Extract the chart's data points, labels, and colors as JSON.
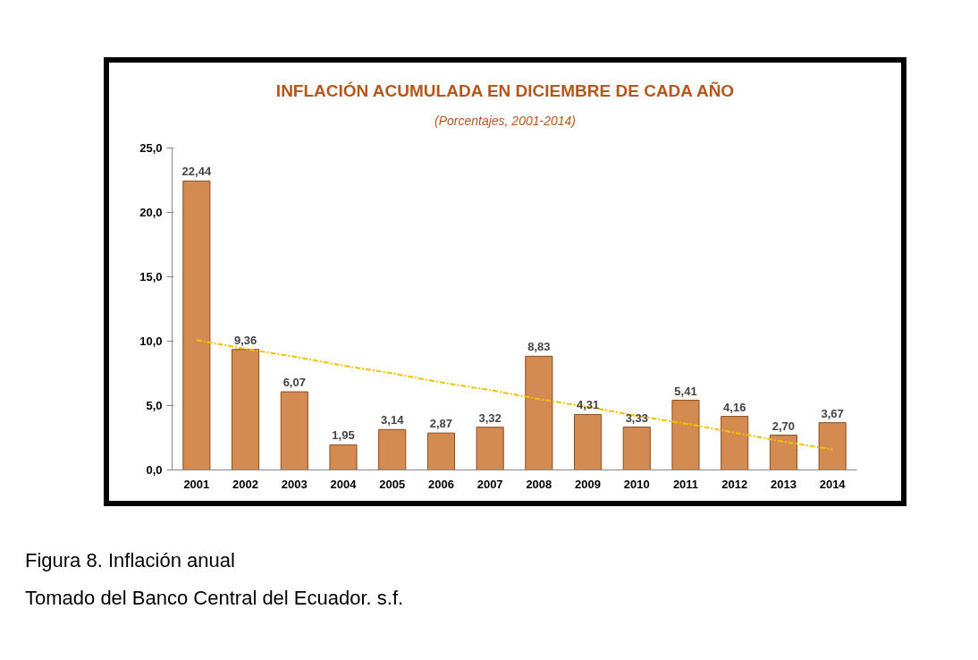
{
  "chart_data": {
    "type": "bar",
    "title": "INFLACIÓN ACUMULADA EN DICIEMBRE DE CADA AÑO",
    "subtitle": "(Porcentajes, 2001-2014)",
    "categories": [
      "2001",
      "2002",
      "2003",
      "2004",
      "2005",
      "2006",
      "2007",
      "2008",
      "2009",
      "2010",
      "2011",
      "2012",
      "2013",
      "2014"
    ],
    "series": [
      {
        "color": "#d38b52",
        "values": [
          22.44,
          9.36,
          6.07,
          1.95,
          3.14,
          2.87,
          3.32,
          8.83,
          4.31,
          3.33,
          5.41,
          4.16,
          2.7,
          3.67
        ],
        "value_labels": [
          "22,44",
          "9,36",
          "6,07",
          "1,95",
          "3,14",
          "2,87",
          "3,32",
          "8,83",
          "4,31",
          "3,33",
          "5,41",
          "4,16",
          "2,70",
          "3,67"
        ]
      },
      {
        "type": "line",
        "color": "#f5c000",
        "line_style": "dashed",
        "values": [
          10.1,
          9.4,
          8.8,
          8.1,
          7.5,
          6.8,
          6.2,
          5.5,
          4.9,
          4.2,
          3.6,
          2.9,
          2.2,
          1.6
        ]
      }
    ],
    "ylim": [
      0,
      25
    ],
    "yticks": [
      {
        "value": 0,
        "label": "0,0"
      },
      {
        "value": 5,
        "label": "5,0"
      },
      {
        "value": 10,
        "label": "10,0"
      },
      {
        "value": 15,
        "label": "15,0"
      },
      {
        "value": 20,
        "label": "20,0"
      },
      {
        "value": 25,
        "label": "25,0"
      }
    ],
    "grid": false,
    "annotations": [
      "Figura 8. Inflación anual",
      "Tomado del Banco Central del Ecuador. s.f."
    ]
  }
}
